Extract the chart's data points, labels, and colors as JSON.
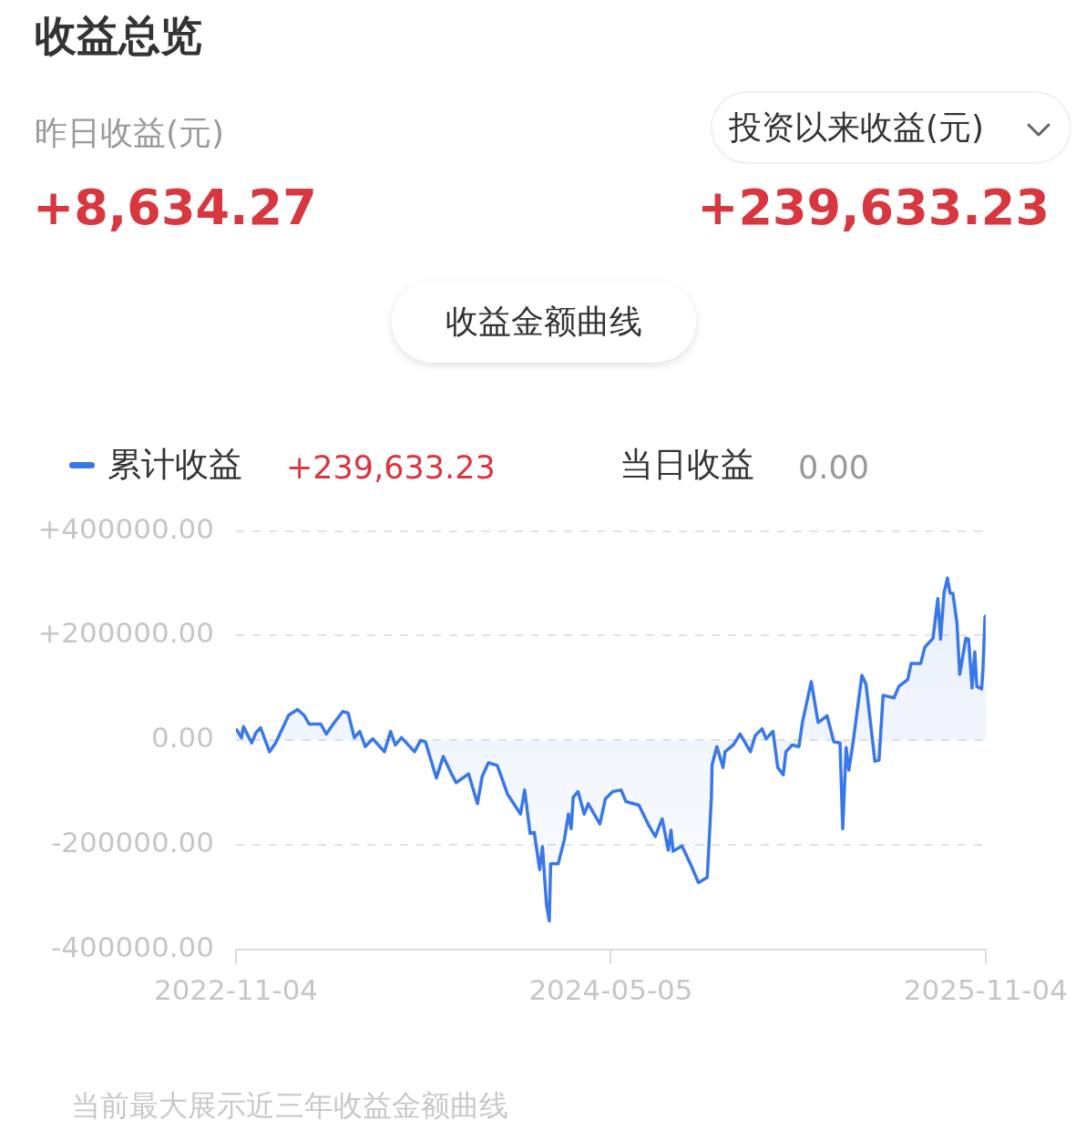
{
  "chart_data": {
    "type": "area",
    "title": "收益总览",
    "annotations": [
      "昨日收益(元)",
      "+8,634.27",
      "投资以来收益(元)",
      "+239,633.23",
      "收益金额曲线",
      "+239,633.23",
      "当日收益",
      "0.00",
      "当前最大展示近三年收益金额曲线"
    ],
    "x": [
      "2022-11-04",
      "2022-11-12",
      "2022-11-15",
      "2022-11-27",
      "2022-12-03",
      "2022-12-10",
      "2022-12-23",
      "2023-01-01",
      "2023-01-20",
      "2023-02-02",
      "2023-02-12",
      "2023-02-19",
      "2023-03-08",
      "2023-03-16",
      "2023-03-25",
      "2023-04-09",
      "2023-04-17",
      "2023-04-26",
      "2023-05-04",
      "2023-05-12",
      "2023-05-23",
      "2023-06-09",
      "2023-06-18",
      "2023-06-25",
      "2023-07-04",
      "2023-07-23",
      "2023-08-01",
      "2023-08-08",
      "2023-08-24",
      "2023-09-03",
      "2023-09-15",
      "2023-09-22",
      "2023-10-10",
      "2023-10-23",
      "2023-10-30",
      "2023-11-08",
      "2023-11-21",
      "2023-12-06",
      "2023-12-25",
      "2023-12-31",
      "2024-01-08",
      "2024-01-14",
      "2024-01-22",
      "2024-01-26",
      "2024-02-01",
      "2024-02-05",
      "2024-02-07",
      "2024-02-18",
      "2024-02-27",
      "2024-03-04",
      "2024-03-08",
      "2024-03-11",
      "2024-03-18",
      "2024-03-27",
      "2024-04-02",
      "2024-04-19",
      "2024-04-27",
      "2024-05-08",
      "2024-05-20",
      "2024-05-27",
      "2024-06-15",
      "2024-06-30",
      "2024-07-09",
      "2024-07-19",
      "2024-07-28",
      "2024-08-01",
      "2024-08-04",
      "2024-08-17",
      "2024-08-30",
      "2024-09-10",
      "2024-09-23",
      "2024-09-29",
      "2024-09-30",
      "2024-10-07",
      "2024-10-16",
      "2024-10-19",
      "2024-10-31",
      "2024-11-10",
      "2024-11-25",
      "2024-12-02",
      "2024-12-12",
      "2024-12-18",
      "2024-12-28",
      "2025-01-04",
      "2025-01-12",
      "2025-01-16",
      "2025-01-25",
      "2025-02-04",
      "2025-02-09",
      "2025-02-22",
      "2025-03-04",
      "2025-03-17",
      "2025-03-27",
      "2025-04-05",
      "2025-04-09",
      "2025-04-14",
      "2025-04-18",
      "2025-04-24",
      "2025-04-30",
      "2025-05-07",
      "2025-05-13",
      "2025-05-19",
      "2025-05-26",
      "2025-06-01",
      "2025-06-07",
      "2025-06-23",
      "2025-06-30",
      "2025-07-13",
      "2025-07-18",
      "2025-08-01",
      "2025-08-07",
      "2025-08-19",
      "2025-08-26",
      "2025-08-30",
      "2025-09-04",
      "2025-09-09",
      "2025-09-13",
      "2025-09-17",
      "2025-09-23",
      "2025-09-27",
      "2025-10-06",
      "2025-10-10",
      "2025-10-15",
      "2025-10-19",
      "2025-10-22",
      "2025-10-29",
      "2025-10-31",
      "2025-11-03",
      "2025-11-04"
    ],
    "series": [
      {
        "name": "累计收益",
        "color": "#3a78e8",
        "values": [
          22000,
          5000,
          26000,
          -5000,
          14000,
          24000,
          -22000,
          -5000,
          48000,
          59000,
          47000,
          31000,
          31000,
          12000,
          29000,
          55000,
          52000,
          5000,
          17000,
          -12000,
          3000,
          -22000,
          17000,
          -9000,
          5000,
          -22000,
          0,
          -3000,
          -72000,
          -31000,
          -64000,
          -81000,
          -64000,
          -121000,
          -69000,
          -43000,
          -48000,
          -103000,
          -141000,
          -95000,
          -178000,
          -176000,
          -247000,
          -203000,
          -315000,
          -345000,
          -236000,
          -236000,
          -190000,
          -141000,
          -169000,
          -109000,
          -98000,
          -141000,
          -121000,
          -160000,
          -112000,
          -98000,
          -95000,
          -117000,
          -124000,
          -164000,
          -184000,
          -150000,
          -210000,
          -172000,
          -212000,
          -202000,
          -238000,
          -272000,
          -262000,
          -109000,
          -47000,
          -12000,
          -52000,
          -22000,
          -9000,
          12000,
          -22000,
          9000,
          22000,
          3000,
          17000,
          -52000,
          -66000,
          -22000,
          -9000,
          -12000,
          34000,
          112000,
          34000,
          47000,
          -3000,
          -5000,
          -169000,
          -14000,
          -57000,
          -5000,
          55000,
          124000,
          107000,
          40000,
          -40000,
          -38000,
          86000,
          81000,
          103000,
          116000,
          147000,
          147000,
          178000,
          195000,
          271000,
          193000,
          281000,
          310000,
          281000,
          281000,
          224000,
          126000,
          195000,
          193000,
          100000,
          169000,
          103000,
          98000,
          138000,
          236000,
          240000
        ]
      }
    ],
    "xlim": [
      "2022-11-04",
      "2025-11-04"
    ],
    "xticks": [
      "2022-11-04",
      "2024-05-05",
      "2025-11-04"
    ],
    "ylim": [
      -400000,
      400000
    ],
    "yticks": [
      {
        "value": -400000,
        "label": "-400000.00"
      },
      {
        "value": -200000,
        "label": "-200000.00"
      },
      {
        "value": 0,
        "label": "0.00"
      },
      {
        "value": 200000,
        "label": "+200000.00"
      },
      {
        "value": 400000,
        "label": "+400000.00"
      }
    ],
    "grid": "y",
    "legend": "top left"
  }
}
